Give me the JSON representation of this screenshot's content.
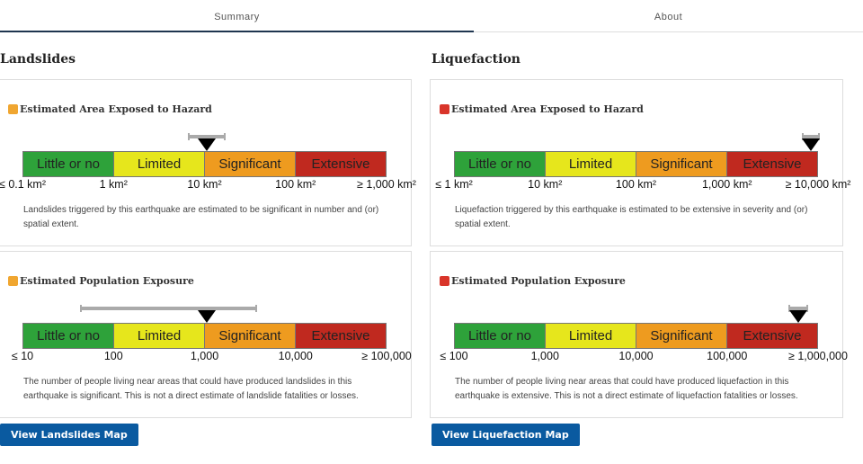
{
  "tabs": [
    {
      "label": "Summary",
      "active": true
    },
    {
      "label": "About",
      "active": false
    }
  ],
  "colors": {
    "little": "#2ea23a",
    "limited": "#e6e61c",
    "significant": "#ee9b1f",
    "extensive": "#c0291f",
    "button": "#0a5aa0",
    "icon_landslide": "#f0a630",
    "icon_liquefaction": "#d9352a"
  },
  "levels": [
    "Little or no",
    "Limited",
    "Significant",
    "Extensive"
  ],
  "landslides": {
    "title": "Landslides",
    "icon": "landslide-alert-icon",
    "area": {
      "title": "Estimated Area Exposed to Hazard",
      "ticks": [
        "≤ 0.1 km²",
        "1 km²",
        "10 km²",
        "100 km²",
        "≥ 1,000 km²"
      ],
      "estimate": 10.7,
      "range": [
        6.6,
        17
      ],
      "scale_min": 0.1,
      "description": "Landslides triggered by this earthquake are estimated to be significant in number and (or) spatial extent."
    },
    "population": {
      "title": "Estimated Population Exposure",
      "ticks": [
        "≤ 10",
        "100",
        "1,000",
        "10,000",
        "≥ 100,000"
      ],
      "estimate": 1070,
      "range": [
        43,
        3800
      ],
      "scale_min": 10,
      "description": "The number of people living near areas that could have produced landslides in this earthquake is significant. This is not a direct estimate of landslide fatalities or losses."
    },
    "button": "View Landslides Map"
  },
  "liquefaction": {
    "title": "Liquefaction",
    "icon": "liquefaction-alert-icon",
    "area": {
      "title": "Estimated Area Exposed to Hazard",
      "ticks": [
        "≤ 1 km²",
        "10 km²",
        "100 km²",
        "1,000 km²",
        "≥ 10,000 km²"
      ],
      "estimate": 8300,
      "range": [
        6600,
        10500
      ],
      "scale_min": 1,
      "description": "Liquefaction triggered by this earthquake is estimated to be extensive in severity and (or) spatial extent."
    },
    "population": {
      "title": "Estimated Population Exposure",
      "ticks": [
        "≤ 100",
        "1,000",
        "10,000",
        "100,000",
        "≥ 1,000,000"
      ],
      "estimate": 600000,
      "range": [
        470000,
        780000
      ],
      "scale_min": 100,
      "description": "The number of people living near areas that could have produced liquefaction in this earthquake is extensive. This is not a direct estimate of liquefaction fatalities or losses."
    },
    "button": "View Liquefaction Map"
  }
}
